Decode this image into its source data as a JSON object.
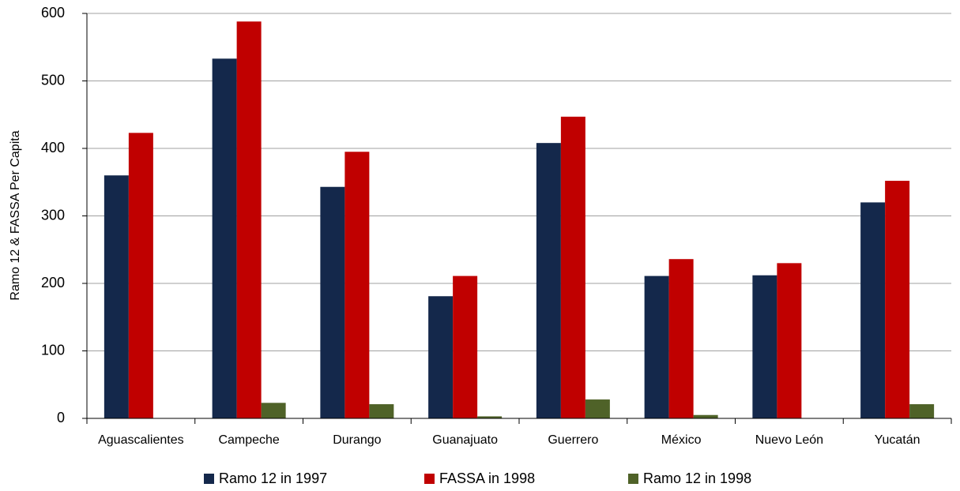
{
  "chart_data": {
    "type": "bar",
    "ylabel": "Ramo 12 & FASSA Per Capita",
    "categories": [
      "Aguascalientes",
      "Campeche",
      "Durango",
      "Guanajuato",
      "Guerrero",
      "México",
      "Nuevo León",
      "Yucatán"
    ],
    "series": [
      {
        "name": "Ramo 12 in 1997",
        "color": "#14284b",
        "values": [
          360,
          533,
          343,
          181,
          408,
          211,
          212,
          320
        ]
      },
      {
        "name": "FASSA in 1998",
        "color": "#c00000",
        "values": [
          423,
          588,
          395,
          211,
          447,
          236,
          230,
          352
        ]
      },
      {
        "name": "Ramo 12 in 1998",
        "color": "#4f6228",
        "values": [
          0,
          23,
          21,
          3,
          28,
          5,
          0,
          21
        ]
      }
    ],
    "ylim": [
      0,
      600
    ],
    "yticks": [
      0,
      100,
      200,
      300,
      400,
      500,
      600
    ],
    "grid": true,
    "legend": "bottom"
  }
}
